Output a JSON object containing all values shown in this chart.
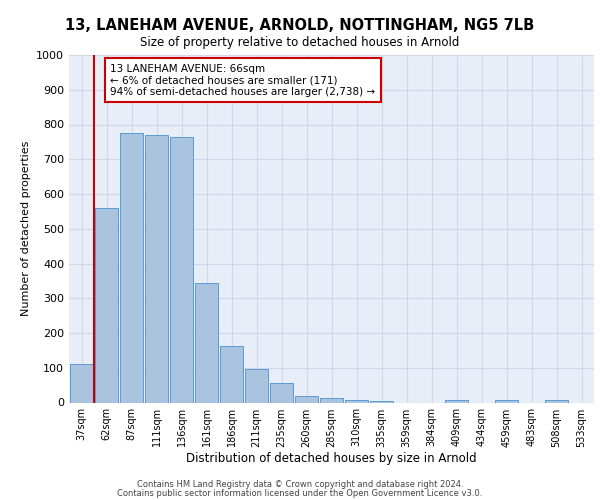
{
  "title_line1": "13, LANEHAM AVENUE, ARNOLD, NOTTINGHAM, NG5 7LB",
  "title_line2": "Size of property relative to detached houses in Arnold",
  "xlabel": "Distribution of detached houses by size in Arnold",
  "ylabel": "Number of detached properties",
  "categories": [
    "37sqm",
    "62sqm",
    "87sqm",
    "111sqm",
    "136sqm",
    "161sqm",
    "186sqm",
    "211sqm",
    "235sqm",
    "260sqm",
    "285sqm",
    "310sqm",
    "335sqm",
    "359sqm",
    "384sqm",
    "409sqm",
    "434sqm",
    "459sqm",
    "483sqm",
    "508sqm",
    "533sqm"
  ],
  "values": [
    110,
    560,
    775,
    770,
    765,
    345,
    163,
    95,
    55,
    18,
    12,
    7,
    5,
    0,
    0,
    8,
    0,
    8,
    0,
    8,
    0
  ],
  "bar_color": "#aac4e0",
  "bar_edge_color": "#5b9bd5",
  "vline_x_index": 1,
  "annotation_text": "13 LANEHAM AVENUE: 66sqm\n← 6% of detached houses are smaller (171)\n94% of semi-detached houses are larger (2,738) →",
  "annotation_box_color": "#ffffff",
  "annotation_box_edge_color": "#cc0000",
  "vline_color": "#cc0000",
  "grid_color": "#d0d8e8",
  "bg_color": "#e8eef8",
  "footer_line1": "Contains HM Land Registry data © Crown copyright and database right 2024.",
  "footer_line2": "Contains public sector information licensed under the Open Government Licence v3.0.",
  "ylim": [
    0,
    1000
  ],
  "yticks": [
    0,
    100,
    200,
    300,
    400,
    500,
    600,
    700,
    800,
    900,
    1000
  ]
}
